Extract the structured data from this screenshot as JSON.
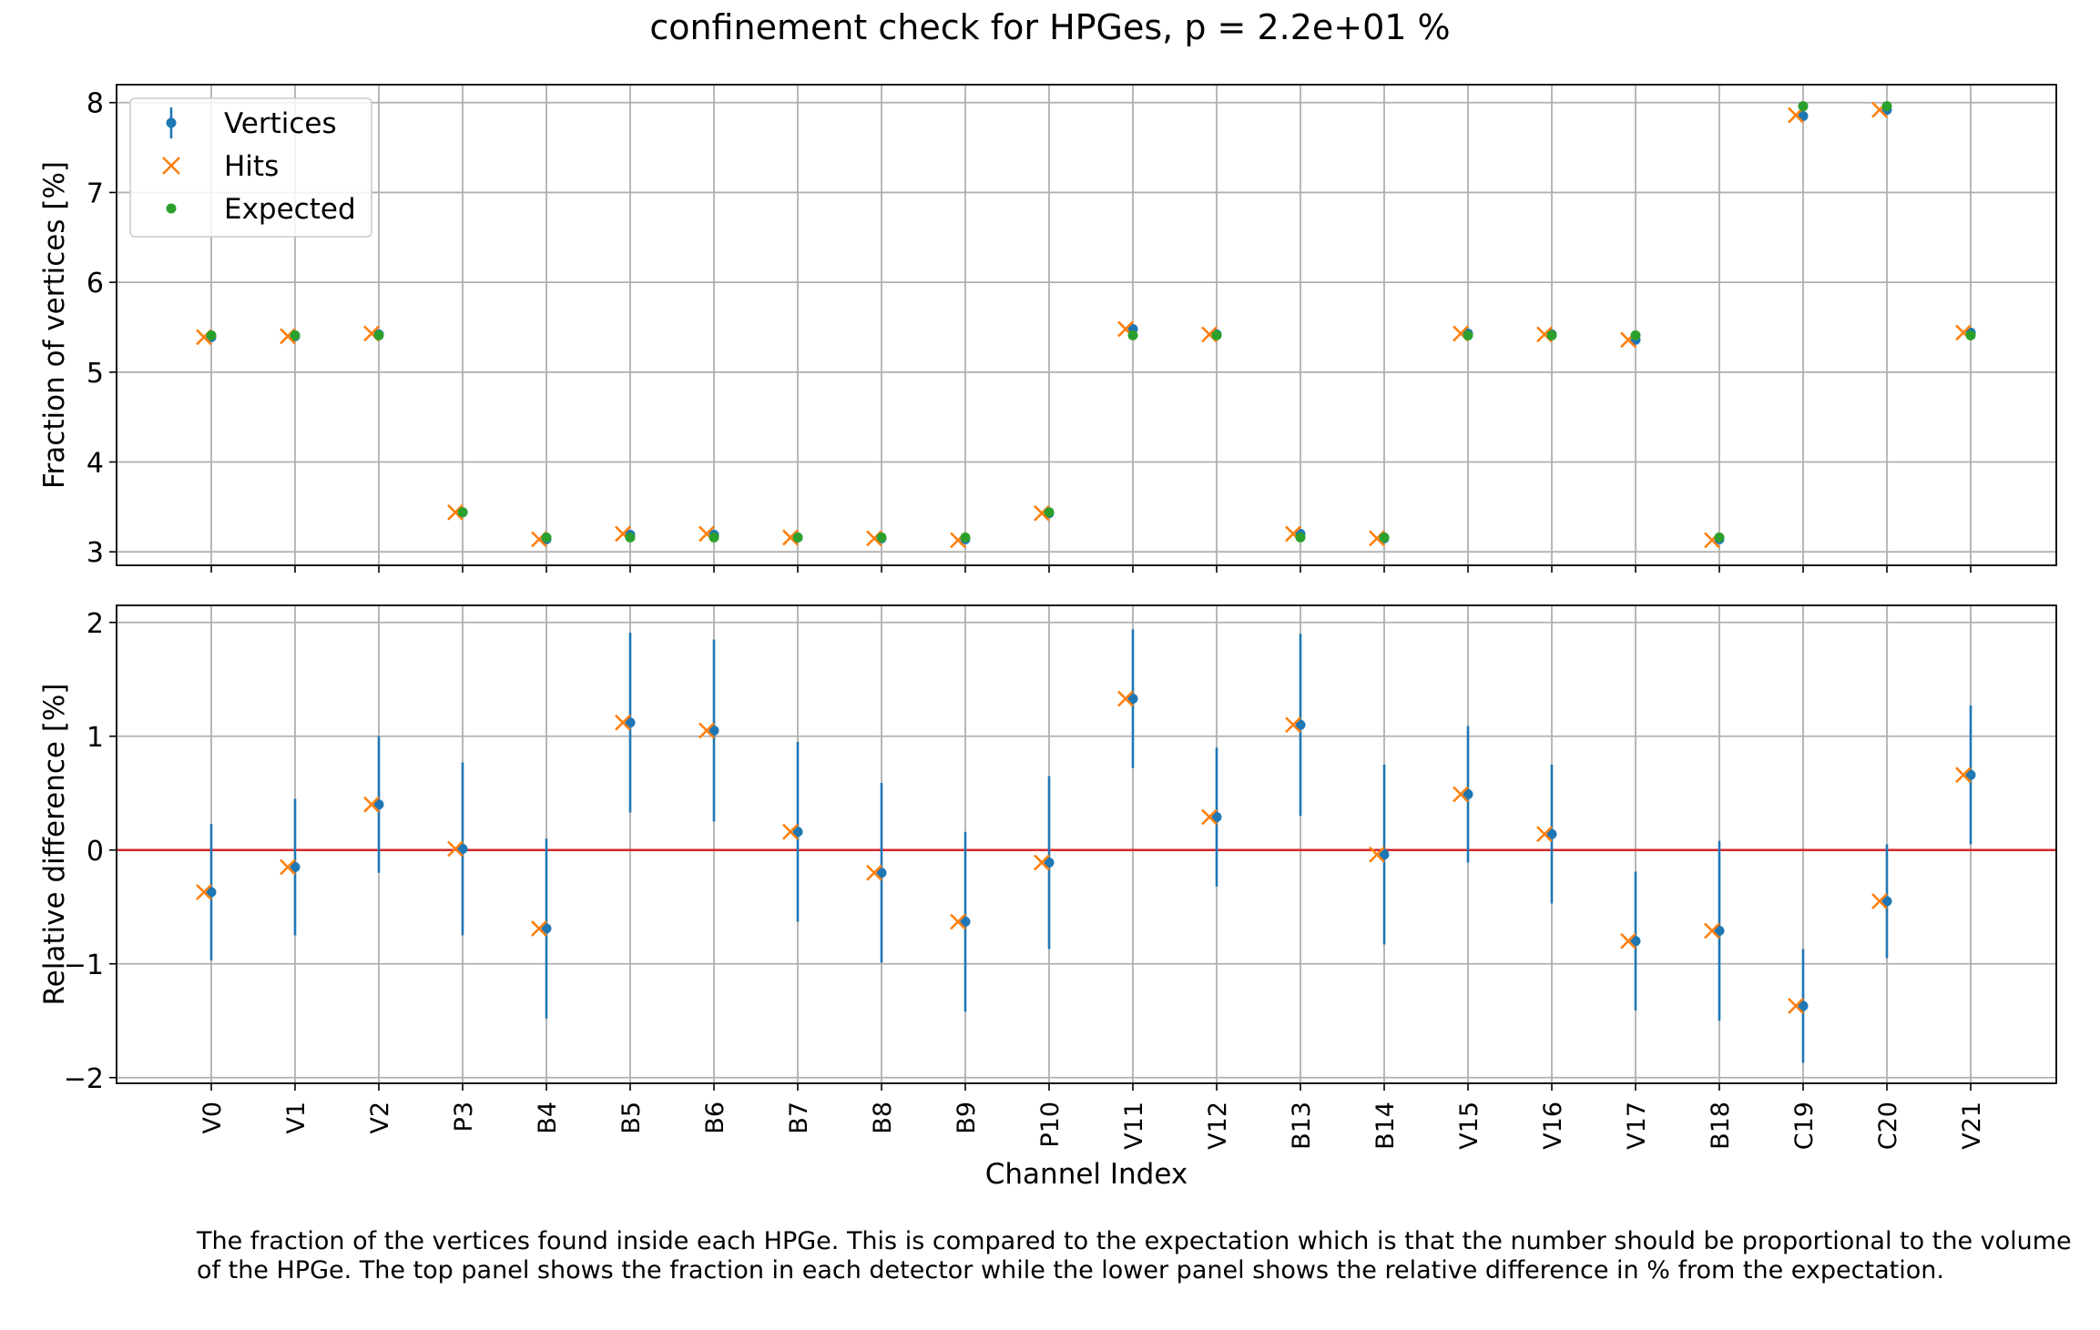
{
  "title": "confinement check for HPGes, p = 2.2e+01 %",
  "caption": "The fraction of the vertices found inside each HPGe. This is compared to the expectation which is that the number should be proportional to the volume of the HPGe. The top panel shows the fraction in each detector while the lower panel shows the relative difference in % from the expectation.",
  "colors": {
    "vertices": "#1f77b4",
    "hits": "#ff7f0e",
    "expected": "#2ca02c",
    "zero_line": "#d62728",
    "grid": "#b0b0b0"
  },
  "chart_data": [
    {
      "type": "scatter",
      "panel": "top",
      "ylabel": "Fraction of vertices [%]",
      "xlabel": "",
      "ylim": [
        2.85,
        8.2
      ],
      "yticks": [
        3,
        4,
        5,
        6,
        7,
        8
      ],
      "ytick_labels": [
        "3",
        "4",
        "5",
        "6",
        "7",
        "8"
      ],
      "grid": true,
      "legend_position": "upper-left",
      "categories": [
        "V0",
        "V1",
        "V2",
        "P3",
        "B4",
        "B5",
        "B6",
        "B7",
        "B8",
        "B9",
        "P10",
        "V11",
        "V12",
        "B13",
        "B14",
        "V15",
        "V16",
        "V17",
        "B18",
        "C19",
        "C20",
        "V21"
      ],
      "series": [
        {
          "name": "Vertices",
          "marker": "dot-errorbar",
          "values": [
            5.39,
            5.4,
            5.42,
            3.44,
            3.14,
            3.19,
            3.19,
            3.16,
            3.15,
            3.14,
            3.43,
            5.48,
            5.42,
            3.2,
            3.15,
            5.43,
            5.42,
            5.36,
            3.14,
            7.85,
            7.92,
            5.44
          ],
          "errors": [
            0.03,
            0.03,
            0.03,
            0.03,
            0.03,
            0.03,
            0.03,
            0.03,
            0.03,
            0.03,
            0.03,
            0.03,
            0.03,
            0.03,
            0.03,
            0.03,
            0.03,
            0.03,
            0.03,
            0.04,
            0.04,
            0.03
          ]
        },
        {
          "name": "Hits",
          "marker": "x",
          "values": [
            5.39,
            5.4,
            5.43,
            3.44,
            3.14,
            3.2,
            3.2,
            3.16,
            3.15,
            3.13,
            3.43,
            5.48,
            5.42,
            3.2,
            3.15,
            5.43,
            5.42,
            5.36,
            3.13,
            7.86,
            7.92,
            5.44
          ]
        },
        {
          "name": "Expected",
          "marker": "dot",
          "values": [
            5.41,
            5.41,
            5.41,
            3.44,
            3.16,
            3.16,
            3.16,
            3.16,
            3.16,
            3.16,
            3.44,
            5.41,
            5.41,
            3.16,
            3.16,
            5.41,
            5.41,
            5.41,
            3.16,
            7.96,
            7.96,
            5.41
          ]
        }
      ]
    },
    {
      "type": "scatter",
      "panel": "bottom",
      "ylabel": "Relative difference [%]",
      "xlabel": "Channel Index",
      "ylim": [
        -2.05,
        2.15
      ],
      "yticks": [
        -2,
        -1,
        0,
        1,
        2
      ],
      "ytick_labels": [
        "−2",
        "−1",
        "0",
        "1",
        "2"
      ],
      "grid": true,
      "reference_line": 0,
      "categories": [
        "V0",
        "V1",
        "V2",
        "P3",
        "B4",
        "B5",
        "B6",
        "B7",
        "B8",
        "B9",
        "P10",
        "V11",
        "V12",
        "B13",
        "B14",
        "V15",
        "V16",
        "V17",
        "B18",
        "C19",
        "C20",
        "V21"
      ],
      "series": [
        {
          "name": "Vertices",
          "marker": "dot-errorbar",
          "values": [
            -0.37,
            -0.15,
            0.4,
            0.01,
            -0.69,
            1.12,
            1.05,
            0.16,
            -0.2,
            -0.63,
            -0.11,
            1.33,
            0.29,
            1.1,
            -0.04,
            0.49,
            0.14,
            -0.8,
            -0.71,
            -1.37,
            -0.45,
            0.66
          ],
          "errors": [
            0.6,
            0.6,
            0.6,
            0.76,
            0.79,
            0.79,
            0.8,
            0.79,
            0.79,
            0.79,
            0.76,
            0.61,
            0.61,
            0.8,
            0.79,
            0.6,
            0.61,
            0.61,
            0.79,
            0.5,
            0.5,
            0.61
          ]
        },
        {
          "name": "Hits",
          "marker": "x",
          "values": [
            -0.37,
            -0.15,
            0.4,
            0.01,
            -0.69,
            1.12,
            1.05,
            0.16,
            -0.2,
            -0.63,
            -0.11,
            1.33,
            0.29,
            1.1,
            -0.04,
            0.49,
            0.14,
            -0.8,
            -0.71,
            -1.37,
            -0.45,
            0.66
          ]
        }
      ]
    }
  ]
}
